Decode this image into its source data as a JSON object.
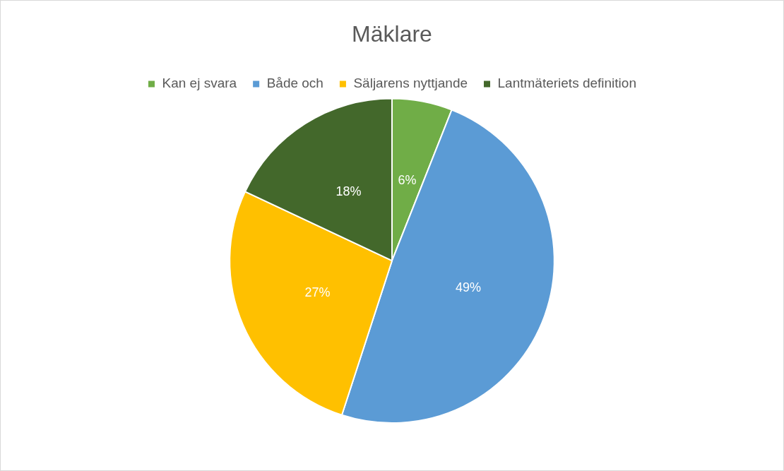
{
  "chart_data": {
    "type": "pie",
    "title": "Mäklare",
    "categories": [
      "Kan ej svara",
      "Både och",
      "Säljarens nyttjande",
      "Lantmäteriets definition"
    ],
    "values": [
      6,
      49,
      27,
      18
    ],
    "value_labels": [
      "6%",
      "49%",
      "27%",
      "18%"
    ],
    "colors": [
      "#70ad47",
      "#5b9bd5",
      "#ffc000",
      "#43682b"
    ],
    "data_labels": true,
    "legend": "top"
  }
}
